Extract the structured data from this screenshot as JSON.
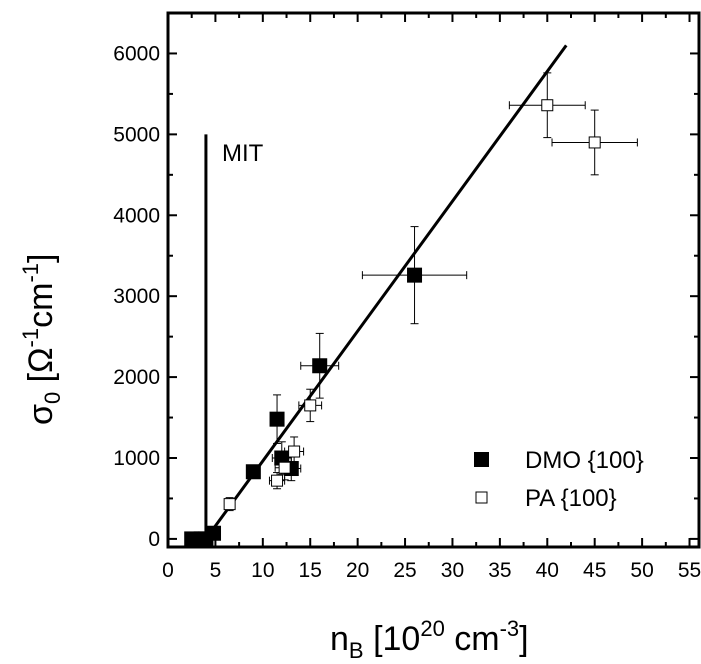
{
  "chart_data": {
    "type": "scatter",
    "xlabel": {
      "base": "n",
      "sub": "B",
      "bracket_open": "[",
      "pow_base": "10",
      "pow": "20",
      "unit": "cm",
      "unit_pow": "-3",
      "bracket_close": "]"
    },
    "ylabel": {
      "base": "σ",
      "sub": "0",
      "bracket_open": "[",
      "unit1": "Ω",
      "unit1_pow": "-1",
      "unit2": "cm",
      "unit2_pow": "-1",
      "bracket_close": "]"
    },
    "xlim": [
      0,
      56
    ],
    "ylim": [
      -100,
      6500
    ],
    "xticks": [
      0,
      5,
      10,
      15,
      20,
      25,
      30,
      35,
      40,
      45,
      50,
      55
    ],
    "yticks": [
      0,
      1000,
      2000,
      3000,
      4000,
      5000,
      6000
    ],
    "grid": false,
    "legend_position": "bottom-right",
    "series": [
      {
        "name": "DMO {100}",
        "marker": "filled-square",
        "color": "#000000",
        "points": [
          {
            "x": 2.5,
            "y": 0
          },
          {
            "x": 3.5,
            "y": 0
          },
          {
            "x": 4.0,
            "y": 0
          },
          {
            "x": 4.8,
            "y": 70
          },
          {
            "x": 9.0,
            "y": 830
          },
          {
            "x": 11.5,
            "y": 1480,
            "yerr": 300
          },
          {
            "x": 12.0,
            "y": 1000,
            "xerr": 1.0,
            "yerr": 200
          },
          {
            "x": 13.0,
            "y": 870,
            "xerr": 1.0,
            "yerr": 150
          },
          {
            "x": 16.0,
            "y": 2140,
            "xerr": 2.0,
            "yerr": 400
          },
          {
            "x": 26.0,
            "y": 3260,
            "xerr": 5.5,
            "yerr": 600
          }
        ]
      },
      {
        "name": "PA {100}",
        "marker": "open-square",
        "color": "#000000",
        "points": [
          {
            "x": 6.5,
            "y": 430,
            "yerr": 80
          },
          {
            "x": 11.5,
            "y": 720,
            "xerr": 0.8,
            "yerr": 100
          },
          {
            "x": 12.3,
            "y": 880,
            "xerr": 1.0,
            "yerr": 150
          },
          {
            "x": 13.3,
            "y": 1080,
            "xerr": 1.0,
            "yerr": 180
          },
          {
            "x": 15.0,
            "y": 1650,
            "xerr": 1.2,
            "yerr": 200
          },
          {
            "x": 40.0,
            "y": 5360,
            "xerr": 4.0,
            "yerr": 400
          },
          {
            "x": 45.0,
            "y": 4900,
            "xerr": 4.5,
            "yerr": 400
          }
        ]
      }
    ],
    "fit_line": {
      "x": [
        4.0,
        42.0
      ],
      "y": [
        0,
        6100
      ]
    },
    "mit_line": {
      "x": [
        4.0,
        4.0
      ],
      "y": [
        0,
        5000
      ],
      "label": "MIT"
    }
  }
}
